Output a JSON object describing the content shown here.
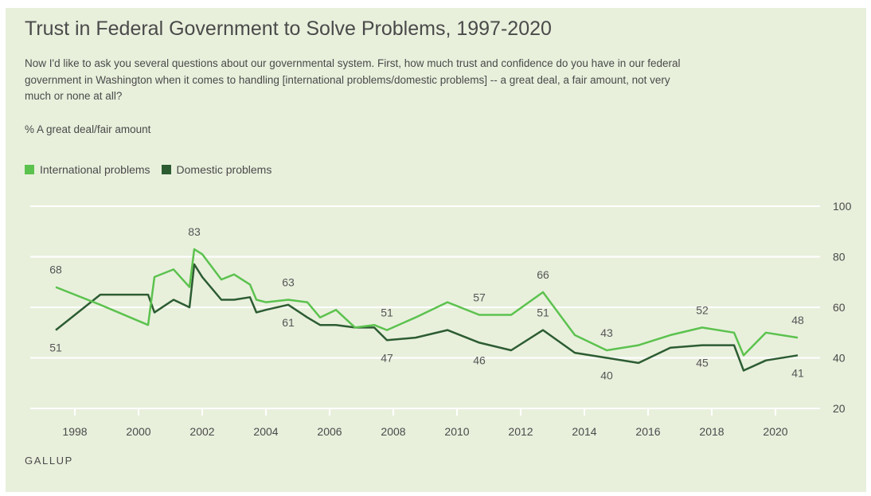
{
  "title": "Trust in Federal Government to Solve Problems, 1997-2020",
  "subtitle": "Now I'd like to ask you several questions about our governmental system. First, how much trust and confidence do you have in our federal government in Washington when it comes to handling [international problems/domestic problems] -- a great deal, a fair amount, not very much or none at all?",
  "unit_label": "% A great deal/fair amount",
  "source": "GALLUP",
  "colors": {
    "background": "#e8f0dc",
    "international": "#5cc24e",
    "domestic": "#2d5c32",
    "grid": "#ffffff"
  },
  "chart_data": {
    "type": "line",
    "title": "Trust in Federal Government to Solve Problems, 1997-2020",
    "ylabel": "% A great deal/fair amount",
    "xlim": [
      1996.6,
      2021.4
    ],
    "ylim": [
      20,
      100
    ],
    "y_ticks": [
      20,
      40,
      60,
      80,
      100
    ],
    "x_ticks": [
      1998,
      2000,
      2002,
      2004,
      2006,
      2008,
      2010,
      2012,
      2014,
      2016,
      2018,
      2020
    ],
    "grid": true,
    "legend_position": "top-left",
    "series": [
      {
        "name": "International problems",
        "color": "#5cc24e",
        "x": [
          1997.4,
          1998.8,
          2000.3,
          2000.5,
          2001.1,
          2001.6,
          2001.75,
          2002.0,
          2002.6,
          2003.0,
          2003.5,
          2003.7,
          2004.0,
          2004.7,
          2005.3,
          2005.7,
          2006.2,
          2006.8,
          2007.4,
          2007.8,
          2008.7,
          2009.7,
          2010.7,
          2011.7,
          2012.7,
          2013.7,
          2014.7,
          2015.7,
          2016.7,
          2017.7,
          2018.7,
          2019.0,
          2019.7,
          2020.7
        ],
        "y": [
          68,
          61,
          53,
          72,
          75,
          68,
          83,
          81,
          71,
          73,
          69,
          63,
          62,
          63,
          62,
          56,
          59,
          52,
          53,
          51,
          56,
          62,
          57,
          57,
          66,
          49,
          43,
          45,
          49,
          52,
          50,
          41,
          50,
          48
        ]
      },
      {
        "name": "Domestic problems",
        "color": "#2d5c32",
        "x": [
          1997.4,
          1998.8,
          2000.3,
          2000.5,
          2001.1,
          2001.6,
          2001.75,
          2002.0,
          2002.6,
          2003.0,
          2003.5,
          2003.7,
          2004.0,
          2004.7,
          2005.3,
          2005.7,
          2006.2,
          2006.8,
          2007.4,
          2007.8,
          2008.7,
          2009.7,
          2010.7,
          2011.7,
          2012.7,
          2013.7,
          2014.7,
          2015.7,
          2016.7,
          2017.7,
          2018.7,
          2019.0,
          2019.7,
          2020.7
        ],
        "y": [
          51,
          65,
          65,
          58,
          63,
          60,
          77,
          72,
          63,
          63,
          64,
          58,
          59,
          61,
          56,
          53,
          53,
          52,
          52,
          47,
          48,
          51,
          46,
          43,
          51,
          42,
          40,
          38,
          44,
          45,
          45,
          35,
          39,
          41
        ]
      }
    ],
    "annotations": [
      {
        "series": 0,
        "index": 0,
        "text": "68",
        "pos": "above"
      },
      {
        "series": 0,
        "index": 6,
        "text": "83",
        "pos": "above"
      },
      {
        "series": 0,
        "index": 13,
        "text": "63",
        "pos": "above"
      },
      {
        "series": 0,
        "index": 19,
        "text": "51",
        "pos": "above"
      },
      {
        "series": 0,
        "index": 22,
        "text": "57",
        "pos": "above"
      },
      {
        "series": 0,
        "index": 24,
        "text": "66",
        "pos": "above"
      },
      {
        "series": 0,
        "index": 26,
        "text": "43",
        "pos": "above"
      },
      {
        "series": 0,
        "index": 29,
        "text": "52",
        "pos": "above"
      },
      {
        "series": 0,
        "index": 33,
        "text": "48",
        "pos": "above"
      },
      {
        "series": 1,
        "index": 0,
        "text": "51",
        "pos": "below"
      },
      {
        "series": 1,
        "index": 13,
        "text": "61",
        "pos": "below"
      },
      {
        "series": 1,
        "index": 19,
        "text": "47",
        "pos": "below"
      },
      {
        "series": 1,
        "index": 22,
        "text": "46",
        "pos": "below"
      },
      {
        "series": 1,
        "index": 24,
        "text": "51",
        "pos": "above"
      },
      {
        "series": 1,
        "index": 26,
        "text": "40",
        "pos": "below"
      },
      {
        "series": 1,
        "index": 29,
        "text": "45",
        "pos": "below"
      },
      {
        "series": 1,
        "index": 33,
        "text": "41",
        "pos": "below"
      }
    ]
  }
}
